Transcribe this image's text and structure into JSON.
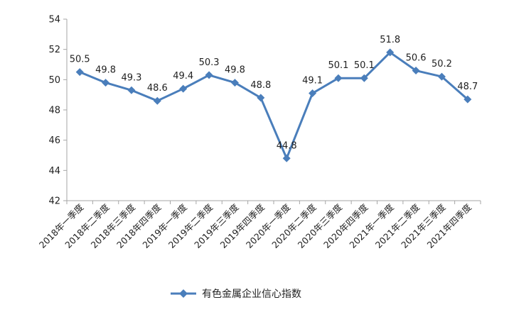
{
  "chart_data": {
    "type": "line",
    "categories": [
      "2018年一季度",
      "2018年二季度",
      "2018年三季度",
      "2018年四季度",
      "2019年一季度",
      "2019年二季度",
      "2019年三季度",
      "2019年四季度",
      "2020年一季度",
      "2020年二季度",
      "2020年三季度",
      "2020年四季度",
      "2021年一季度",
      "2021年二季度",
      "2021年三季度",
      "2021年四季度"
    ],
    "series": [
      {
        "name": "有色金属企业信心指数",
        "values": [
          50.5,
          49.8,
          49.3,
          48.6,
          49.4,
          50.3,
          49.8,
          48.8,
          44.8,
          49.1,
          50.1,
          50.1,
          51.8,
          50.6,
          50.2,
          48.7
        ],
        "labels": [
          "50.5",
          "49.8",
          "49.3",
          "48.6",
          "49.4",
          "50.3",
          "49.8",
          "48.8",
          "44.8",
          "49.1",
          "50.1",
          "50.1",
          "51.8",
          "50.6",
          "50.2",
          "48.7"
        ],
        "color": "#4a7ebb",
        "marker": "diamond"
      }
    ],
    "yticks": [
      "42",
      "44",
      "46",
      "48",
      "50",
      "52",
      "54"
    ],
    "ylim": [
      42,
      54
    ],
    "grid": false,
    "legend_position": "bottom"
  }
}
